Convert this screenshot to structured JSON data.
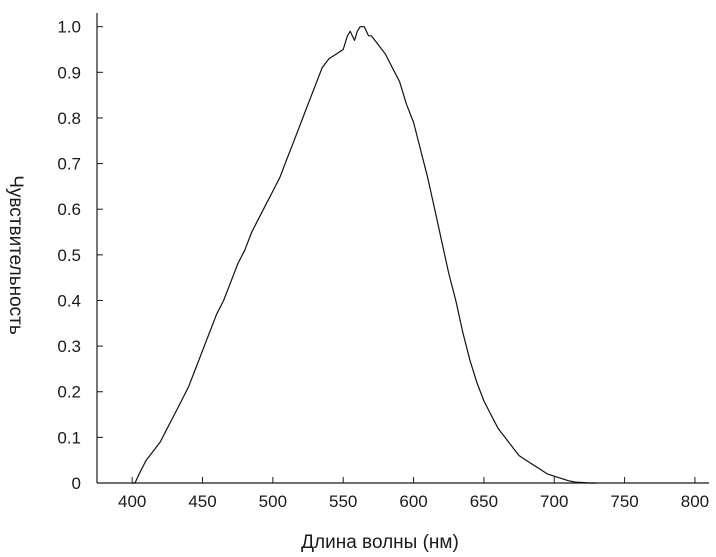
{
  "chart_data": {
    "type": "line",
    "title": "",
    "xlabel": "Длина волны (нм)",
    "ylabel": "Чувствительность",
    "xlim": [
      375,
      810
    ],
    "ylim": [
      0,
      1.03
    ],
    "xticks": [
      400,
      450,
      500,
      550,
      600,
      650,
      700,
      750,
      800
    ],
    "xtick_labels": [
      "400",
      "450",
      "500",
      "550",
      "600",
      "650",
      "700",
      "750",
      "800"
    ],
    "yticks": [
      0,
      0.1,
      0.2,
      0.3,
      0.4,
      0.5,
      0.6,
      0.7,
      0.8,
      0.9,
      1.0
    ],
    "ytick_labels": [
      "0",
      "0.1",
      "0.2",
      "0.3",
      "0.4",
      "0.5",
      "0.6",
      "0.7",
      "0.8",
      "0.9",
      "1.0"
    ],
    "grid": false,
    "colors": {
      "line": "#111111",
      "axes": "#1a1a1a"
    },
    "series": [
      {
        "x": [
          400,
          402,
          405,
          410,
          415,
          420,
          425,
          430,
          435,
          440,
          445,
          450,
          455,
          460,
          465,
          470,
          475,
          480,
          485,
          490,
          495,
          500,
          505,
          510,
          515,
          520,
          525,
          530,
          535,
          540,
          545,
          550,
          553,
          555,
          558,
          560,
          562,
          565,
          568,
          570,
          575,
          580,
          585,
          590,
          595,
          600,
          605,
          610,
          615,
          620,
          625,
          630,
          635,
          640,
          645,
          650,
          655,
          660,
          665,
          670,
          675,
          680,
          685,
          690,
          695,
          700,
          705,
          710,
          715,
          720,
          725,
          728,
          730
        ],
        "y": [
          0.0,
          0.0,
          0.02,
          0.05,
          0.07,
          0.09,
          0.12,
          0.15,
          0.18,
          0.21,
          0.25,
          0.29,
          0.33,
          0.37,
          0.4,
          0.44,
          0.48,
          0.51,
          0.55,
          0.58,
          0.61,
          0.64,
          0.67,
          0.71,
          0.75,
          0.79,
          0.83,
          0.87,
          0.91,
          0.93,
          0.94,
          0.95,
          0.98,
          0.99,
          0.97,
          0.99,
          1.0,
          1.0,
          0.98,
          0.98,
          0.96,
          0.94,
          0.91,
          0.88,
          0.83,
          0.79,
          0.73,
          0.67,
          0.6,
          0.53,
          0.46,
          0.4,
          0.33,
          0.27,
          0.22,
          0.18,
          0.15,
          0.12,
          0.1,
          0.08,
          0.06,
          0.05,
          0.04,
          0.03,
          0.02,
          0.015,
          0.01,
          0.005,
          0.002,
          0.001,
          0.0,
          0.0,
          0.0
        ]
      }
    ]
  }
}
